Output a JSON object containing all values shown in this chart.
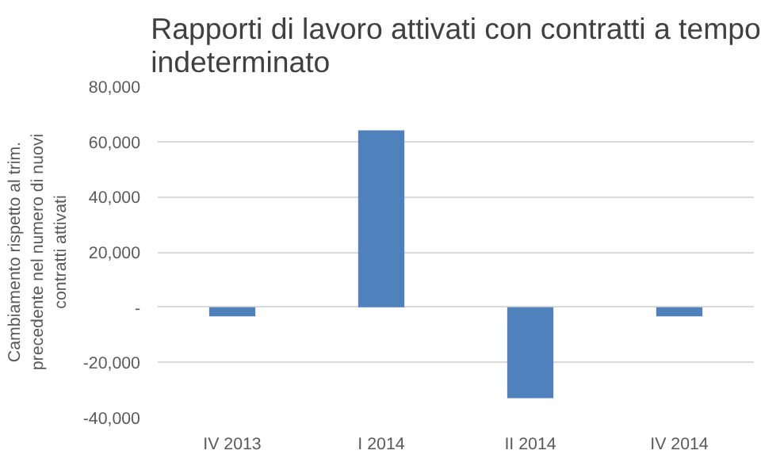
{
  "chart_data": {
    "type": "bar",
    "title": "Rapporti di lavoro attivati con contratti a tempo indeterminato",
    "ylabel": "Cambiamento rispetto al trim. precedente nel numero di nuovi contratti attivati",
    "categories": [
      "IV 2013",
      "I 2014",
      "II 2014",
      "IV 2014"
    ],
    "values": [
      -3300,
      64100,
      -33000,
      -3300
    ],
    "color": "#4f81bd",
    "ylim": [
      -40000,
      80000
    ],
    "yticks": [
      {
        "value": -40000,
        "label": "-40,000"
      },
      {
        "value": -20000,
        "label": "-20,000"
      },
      {
        "value": 0,
        "label": "-"
      },
      {
        "value": 20000,
        "label": "20,000"
      },
      {
        "value": 40000,
        "label": "40,000"
      },
      {
        "value": 60000,
        "label": "60,000"
      },
      {
        "value": 80000,
        "label": "80,000"
      }
    ],
    "grid": "y"
  }
}
